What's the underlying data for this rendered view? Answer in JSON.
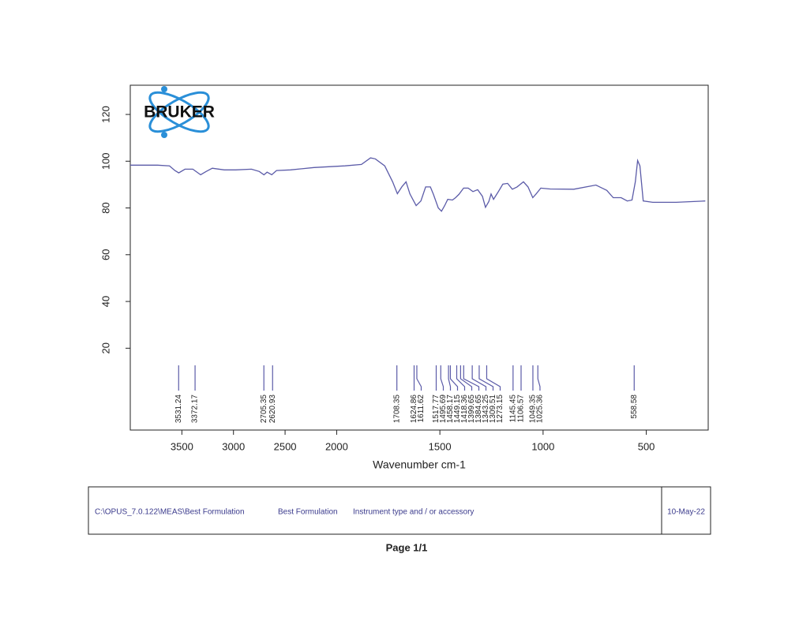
{
  "chart_data": {
    "type": "line",
    "logo": "BRUKER",
    "xlabel": "Wavenumber cm-1",
    "x": [
      4000,
      3735,
      3620,
      3568,
      3530,
      3470,
      3394,
      3318,
      3265,
      3205,
      3090,
      2977,
      2826,
      2750,
      2705,
      2674,
      2629,
      2583,
      2447,
      2220,
      1960,
      1880,
      1836,
      1813,
      1767,
      1729,
      1706,
      1683,
      1664,
      1645,
      1615,
      1592,
      1569,
      1546,
      1531,
      1508,
      1492,
      1477,
      1462,
      1439,
      1424,
      1408,
      1385,
      1363,
      1340,
      1317,
      1294,
      1279,
      1263,
      1252,
      1240,
      1218,
      1195,
      1172,
      1149,
      1126,
      1095,
      1073,
      1050,
      1034,
      1011,
      966,
      851,
      744,
      691,
      660,
      622,
      592,
      569,
      553,
      542,
      531,
      515,
      469,
      355,
      214
    ],
    "series": [
      {
        "color": "#5b5ba8",
        "values": [
          98.3,
          98.3,
          98,
          96,
          95,
          96.6,
          96.6,
          94.2,
          95.6,
          97,
          96.3,
          96.3,
          96.6,
          95.6,
          94.2,
          95.3,
          94.2,
          96,
          96.3,
          97.3,
          98,
          98.6,
          101.4,
          101,
          98,
          91.2,
          86.1,
          89.2,
          91.2,
          86,
          81,
          83,
          89,
          89,
          85.8,
          80,
          78.6,
          81,
          83.7,
          83.4,
          84.4,
          85.8,
          88.5,
          88.5,
          87,
          87.8,
          85,
          80.3,
          82.7,
          86,
          83.7,
          86.8,
          90.2,
          90.5,
          88,
          89,
          91.2,
          89,
          84.4,
          86,
          88.5,
          88.1,
          88,
          89.8,
          87.5,
          84.4,
          84.4,
          83,
          83.4,
          91.2,
          100.3,
          98,
          83,
          82.4,
          82.4,
          83
        ]
      }
    ],
    "xlim": [
      4000,
      200
    ],
    "x_scale_break": {
      "at": 2000,
      "factor": 2
    },
    "xticks": [
      3500,
      3000,
      2500,
      2000,
      1500,
      1000,
      500
    ],
    "ylim": [
      -15,
      132.5
    ],
    "yticks": [
      20,
      40,
      60,
      80,
      100,
      120
    ],
    "peaks": [
      3531.24,
      3372.17,
      2705.35,
      2620.93,
      1708.35,
      1624.86,
      1611.62,
      1517.77,
      1495.69,
      1458.17,
      1449.15,
      1418.36,
      1399.65,
      1384.65,
      1343.25,
      1309.51,
      1273.15,
      1145.45,
      1106.57,
      1049.35,
      1025.36,
      558.58
    ]
  },
  "footer": {
    "path": "C:\\OPUS_7.0.122\\MEAS\\Best Formulation",
    "sample": "Best Formulation",
    "instrument": "Instrument type and / or accessory",
    "date": "10-May-22"
  },
  "page": "Page 1/1"
}
